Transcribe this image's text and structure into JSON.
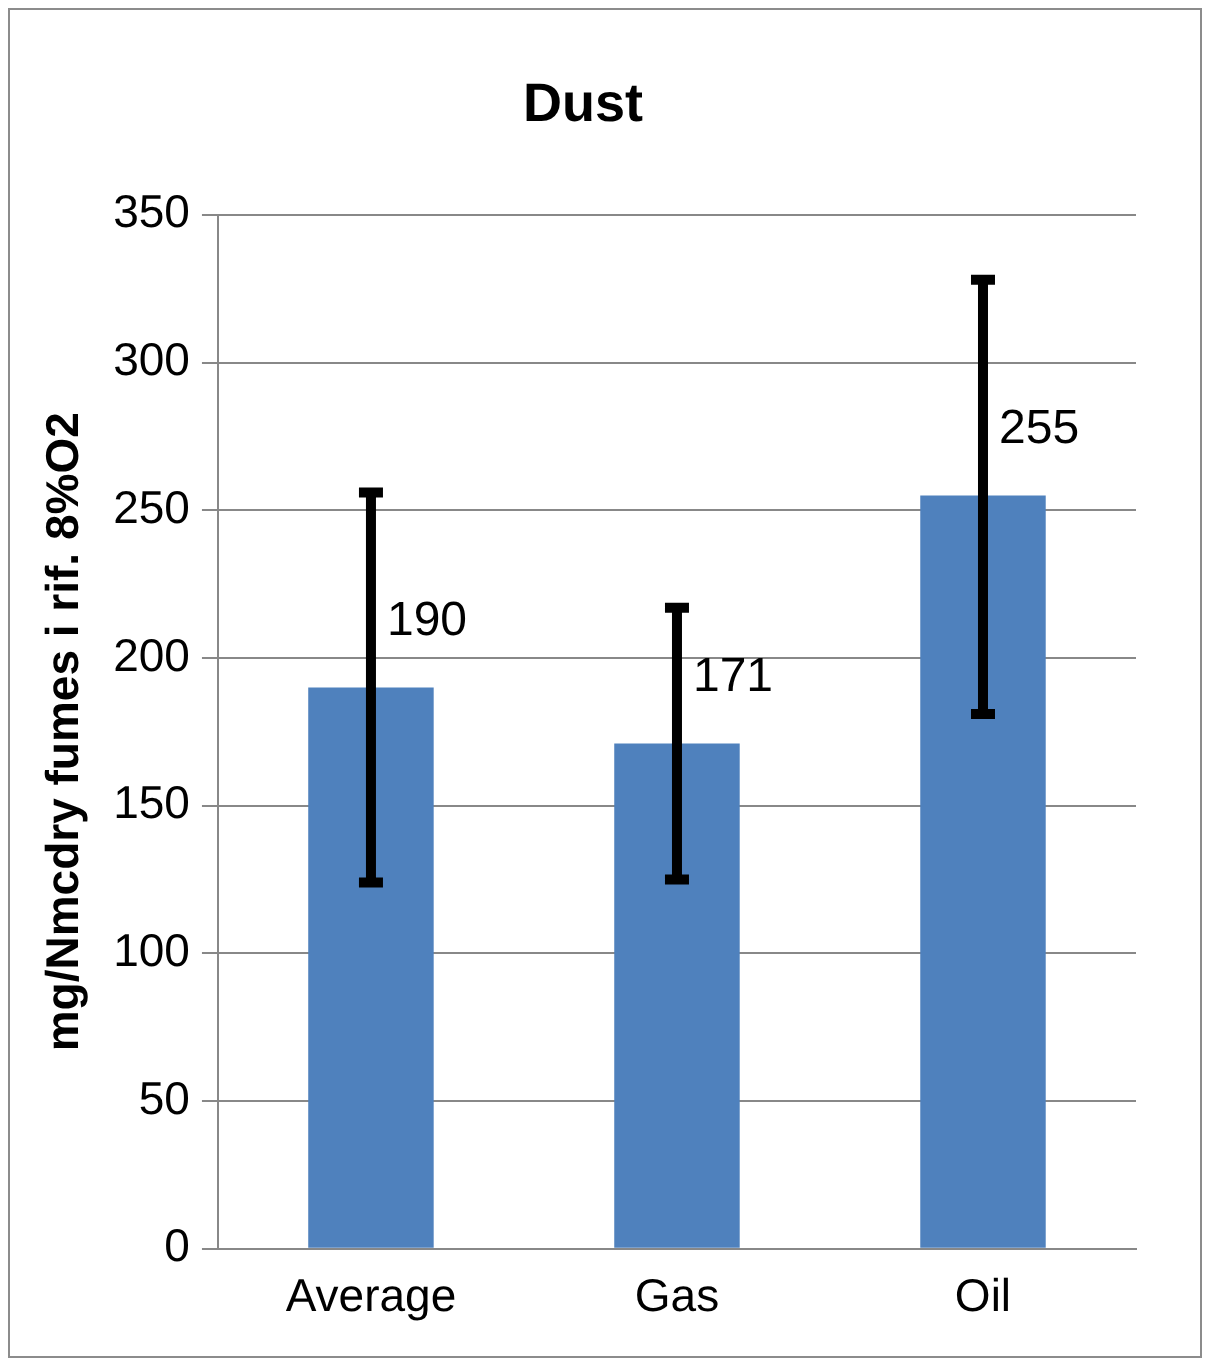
{
  "chart_data": {
    "type": "bar",
    "title": "Dust",
    "ylabel": "mg/Nmcdry fumes i rif. 8%O2",
    "categories": [
      "Average",
      "Gas",
      "Oil"
    ],
    "values": [
      190,
      171,
      255
    ],
    "color": "#4f81bd",
    "errors": [
      [
        124,
        256
      ],
      [
        125,
        217
      ],
      [
        181,
        328
      ]
    ],
    "data_labels": true,
    "ylim": [
      0,
      350
    ],
    "yticks": [
      0,
      50,
      100,
      150,
      200,
      250,
      300,
      350
    ],
    "grid": "y",
    "legend": false
  }
}
